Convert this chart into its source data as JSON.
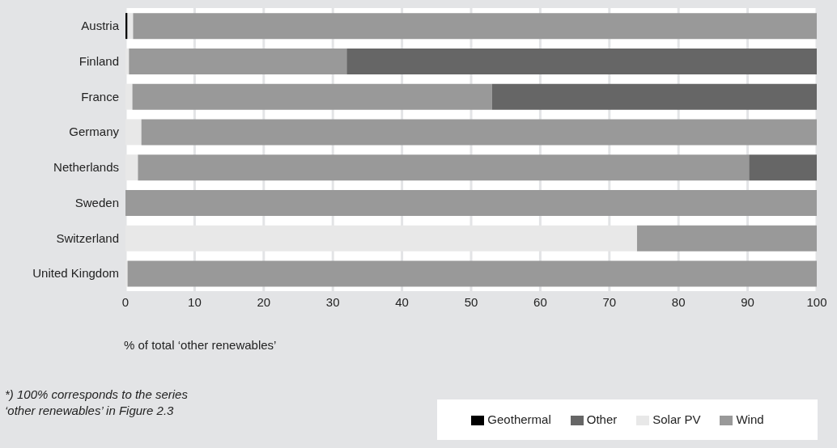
{
  "chart_data": {
    "type": "bar",
    "orientation": "horizontal",
    "stacked": true,
    "categories": [
      "Austria",
      "Finland",
      "France",
      "Germany",
      "Netherlands",
      "Sweden",
      "Switzerland",
      "United Kingdom"
    ],
    "series": [
      {
        "name": "Geothermal",
        "color": "#000000",
        "values": [
          0.3,
          0,
          0,
          0,
          0,
          0,
          0,
          0
        ]
      },
      {
        "name": "Solar PV",
        "color": "#e8e8e8",
        "values": [
          0.8,
          0.5,
          1,
          2.3,
          1.8,
          0,
          74,
          0.3
        ]
      },
      {
        "name": "Wind",
        "color": "#999999",
        "values": [
          98.9,
          31.5,
          52,
          97.7,
          88.4,
          100,
          26,
          99.7
        ]
      },
      {
        "name": "Other",
        "color": "#666666",
        "values": [
          0,
          68,
          47,
          0,
          9.8,
          0,
          0,
          0
        ]
      }
    ],
    "xlim": [
      0,
      100
    ],
    "xticks": [
      0,
      10,
      20,
      30,
      40,
      50,
      60,
      70,
      80,
      90,
      100
    ],
    "xlabel": "% of total ‘other renewables’",
    "grid": "x",
    "legend": "bottom right",
    "annotations": [
      "*) 100% corresponds to the series ‘other renewables’ in Figure 2.3"
    ]
  }
}
